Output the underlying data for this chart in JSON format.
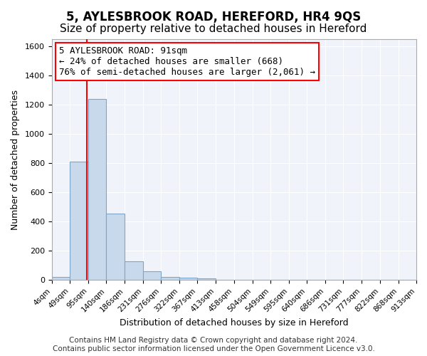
{
  "title": "5, AYLESBROOK ROAD, HEREFORD, HR4 9QS",
  "subtitle": "Size of property relative to detached houses in Hereford",
  "xlabel": "Distribution of detached houses by size in Hereford",
  "ylabel": "Number of detached properties",
  "bin_edges": [
    4,
    49,
    95,
    140,
    186,
    231,
    276,
    322,
    367,
    413,
    458,
    504,
    549,
    595,
    640,
    686,
    731,
    777,
    822,
    868,
    913
  ],
  "bar_heights": [
    20,
    810,
    1240,
    455,
    130,
    60,
    22,
    15,
    10,
    0,
    0,
    0,
    0,
    0,
    0,
    0,
    0,
    0,
    0,
    0
  ],
  "bar_color": "#c9d9ec",
  "bar_edge_color": "#7aa6cc",
  "vline_x": 91,
  "vline_color": "red",
  "annotation_box_text": "5 AYLESBROOK ROAD: 91sqm\n← 24% of detached houses are smaller (668)\n76% of semi-detached houses are larger (2,061) →",
  "annotation_fontsize": 9,
  "ylim": [
    0,
    1650
  ],
  "yticks": [
    0,
    200,
    400,
    600,
    800,
    1000,
    1200,
    1400,
    1600
  ],
  "bg_color": "#f0f4fa",
  "grid_color": "#ffffff",
  "title_fontsize": 12,
  "subtitle_fontsize": 11,
  "footer_text": "Contains HM Land Registry data © Crown copyright and database right 2024.\nContains public sector information licensed under the Open Government Licence v3.0.",
  "footer_fontsize": 7.5
}
